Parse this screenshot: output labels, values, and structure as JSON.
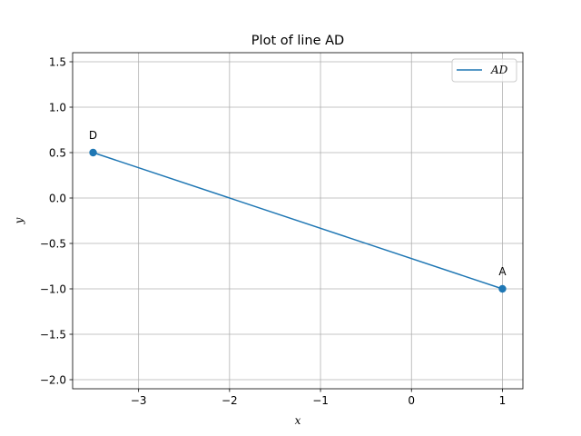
{
  "chart_data": {
    "type": "line",
    "title": "Plot of line AD",
    "xlabel": "x",
    "ylabel": "y",
    "xlim": [
      -3.725,
      1.225
    ],
    "ylim": [
      -2.1,
      1.6
    ],
    "xticks": [
      -3,
      -2,
      -1,
      0,
      1
    ],
    "xtick_labels": [
      "−3",
      "−2",
      "−1",
      "0",
      "1"
    ],
    "yticks": [
      -2.0,
      -1.5,
      -1.0,
      -0.5,
      0.0,
      0.5,
      1.0,
      1.5
    ],
    "ytick_labels": [
      "−2.0",
      "−1.5",
      "−1.0",
      "−0.5",
      "0.0",
      "0.5",
      "1.0",
      "1.5"
    ],
    "grid": true,
    "legend_position": "top-right",
    "series": [
      {
        "name": "AD",
        "legend_label": "AD",
        "color": "#1f77b4",
        "x": [
          -3.5,
          1.0
        ],
        "y": [
          0.5,
          -1.0
        ]
      }
    ],
    "points": [
      {
        "label": "D",
        "x": -3.5,
        "y": 0.5
      },
      {
        "label": "A",
        "x": 1.0,
        "y": -1.0
      }
    ]
  }
}
